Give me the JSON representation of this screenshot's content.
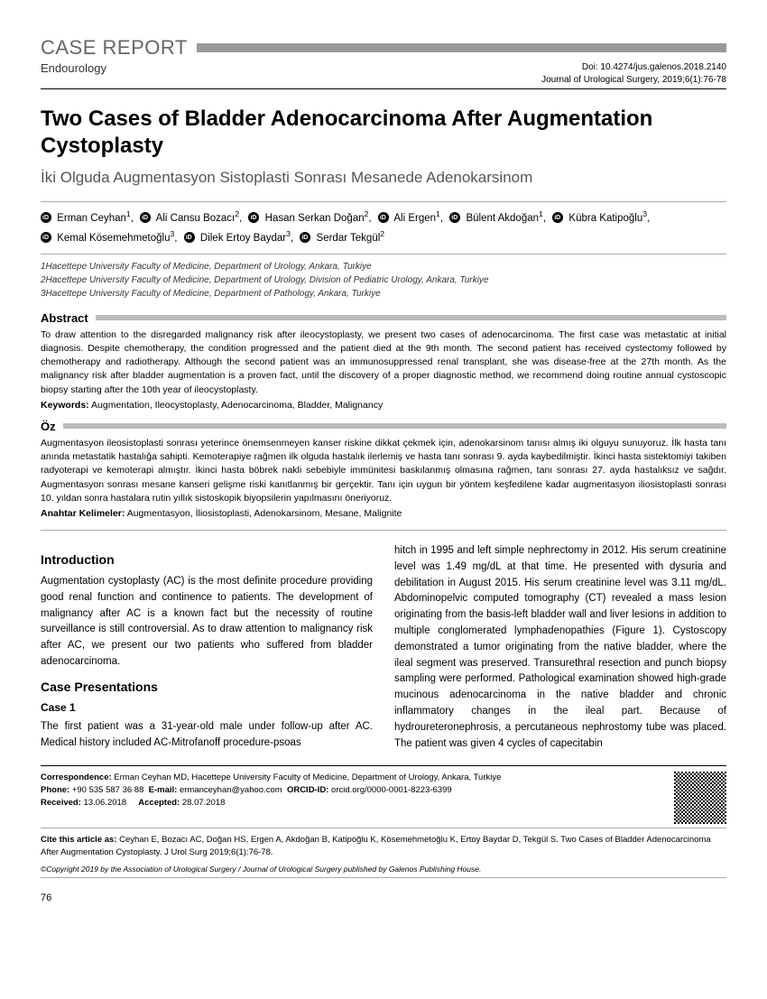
{
  "header": {
    "label": "CASE REPORT",
    "subdiscipline": "Endourology",
    "doi": "Doi: 10.4274/jus.galenos.2018.2140",
    "journal_ref": "Journal of Urological Surgery, 2019;6(1):76-78"
  },
  "title": {
    "en": "Two Cases of Bladder Adenocarcinoma After Augmentation Cystoplasty",
    "tr": "İki Olguda Augmentasyon Sistoplasti Sonrası Mesanede Adenokarsinom"
  },
  "authors": [
    {
      "name": "Erman Ceyhan",
      "aff": "1"
    },
    {
      "name": "Ali Cansu Bozacı",
      "aff": "2"
    },
    {
      "name": "Hasan Serkan Doğan",
      "aff": "2"
    },
    {
      "name": "Ali Ergen",
      "aff": "1"
    },
    {
      "name": "Bülent Akdoğan",
      "aff": "1"
    },
    {
      "name": "Kübra Katipoğlu",
      "aff": "3"
    },
    {
      "name": "Kemal Kösemehmetoğlu",
      "aff": "3"
    },
    {
      "name": "Dilek Ertoy Baydar",
      "aff": "3"
    },
    {
      "name": "Serdar Tekgül",
      "aff": "2"
    }
  ],
  "affiliations": [
    "1Hacettepe University Faculty of Medicine, Department of Urology, Ankara, Turkiye",
    "2Hacettepe University Faculty of Medicine, Department of Urology, Division of Pediatric Urology, Ankara, Turkiye",
    "3Hacettepe University Faculty of Medicine, Department of Pathology, Ankara, Turkiye"
  ],
  "abstract": {
    "heading": "Abstract",
    "text": "To draw attention to the disregarded malignancy risk after ileocystoplasty, we present two cases of adenocarcinoma. The first case was metastatic at initial diagnosis. Despite chemotherapy, the condition progressed and the patient died at the 9th month. The second patient has received cystectomy followed by chemotherapy and radiotherapy. Although the second patient was an immunosuppressed renal transplant, she was disease-free at the 27th month. As the malignancy risk after bladder augmentation is a proven fact, until the discovery of a proper diagnostic method, we recommend doing routine annual cystoscopic biopsy starting after the 10th year of ileocystoplasty.",
    "keywords_label": "Keywords:",
    "keywords": "Augmentation, Ileocystoplasty, Adenocarcinoma, Bladder, Malignancy"
  },
  "oz": {
    "heading": "Öz",
    "text": "Augmentasyon ileosistoplasti sonrası yeterince önemsenmeyen kanser riskine dikkat çekmek için, adenokarsinom tanısı almış iki olguyu sunuyoruz. İlk hasta tanı anında metastatik hastalığa sahipti. Kemoterapiye rağmen ilk olguda hastalık ilerlemiş ve hasta tanı sonrası 9. ayda kaybedilmiştir. İkinci hasta sistektomiyi takiben radyoterapi ve kemoterapi almıştır. İkinci hasta böbrek nakli sebebiyle immünitesi baskılanmış olmasına rağmen, tanı sonrası 27. ayda hastalıksız ve sağdır. Augmentasyon sonrası mesane kanseri gelişme riski kanıtlanmış bir gerçektir. Tanı için uygun bir yöntem keşfedilene kadar augmentasyon iliosistoplasti sonrası 10. yıldan sonra hastalara rutin yıllık sistoskopik biyopsilerin yapılmasını öneriyoruz.",
    "keywords_label": "Anahtar Kelimeler:",
    "keywords": "Augmentasyon, İliosistoplasti, Adenokarsinom, Mesane, Malignite"
  },
  "body": {
    "intro_head": "Introduction",
    "intro_p": "Augmentation cystoplasty (AC) is the most definite procedure providing good renal function and continence to patients. The development of malignancy after AC is a known fact but the necessity of routine surveillance is still controversial. As to draw attention to malignancy risk after AC, we present our two patients who suffered from bladder adenocarcinoma.",
    "cases_head": "Case Presentations",
    "case1_head": "Case 1",
    "case1_left": "The first patient was a 31-year-old male under follow-up after AC. Medical history included AC-Mitrofanoff procedure-psoas",
    "case1_right": "hitch in 1995 and left simple nephrectomy in 2012. His serum creatinine level was 1.49 mg/dL at that time. He presented with dysuria and debilitation in August 2015. His serum creatinine level was 3.11 mg/dL. Abdominopelvic computed tomography (CT) revealed a mass lesion originating from the basis-left bladder wall and liver lesions in addition to multiple conglomerated lymphadenopathies (Figure 1). Cystoscopy demonstrated a tumor originating from the native bladder, where the ileal segment was preserved. Transurethral resection and punch biopsy sampling were performed. Pathological examination showed high-grade mucinous adenocarcinoma in the native bladder and chronic inflammatory changes in the ileal part. Because of hydroureteronephrosis, a percutaneous nephrostomy tube was placed. The patient was given 4 cycles of capecitabin"
  },
  "footer": {
    "correspondence_label": "Correspondence:",
    "correspondence": "Erman Ceyhan MD, Hacettepe University Faculty of Medicine, Department of Urology, Ankara, Turkiye",
    "phone_label": "Phone:",
    "phone": "+90 535 587 36 88",
    "email_label": "E-mail:",
    "email": "ermanceyhan@yahoo.com",
    "orcid_label": "ORCID-ID:",
    "orcid": "orcid.org/0000-0001-8223-6399",
    "received_label": "Received:",
    "received": "13.06.2018",
    "accepted_label": "Accepted:",
    "accepted": "28.07.2018",
    "cite_label": "Cite this article as:",
    "cite": "Ceyhan E, Bozacı AC, Doğan HS, Ergen A, Akdoğan B, Katipoğlu K, Kösemehmetoğlu K, Ertoy Baydar D, Tekgül S. Two Cases of Bladder Adenocarcinoma After Augmentation Cystoplasty. J Urol Surg 2019;6(1):76-78.",
    "copyright": "©Copyright 2019 by the Association of Urological Surgery / Journal of Urological Surgery published by Galenos Publishing House."
  },
  "page_number": "76"
}
